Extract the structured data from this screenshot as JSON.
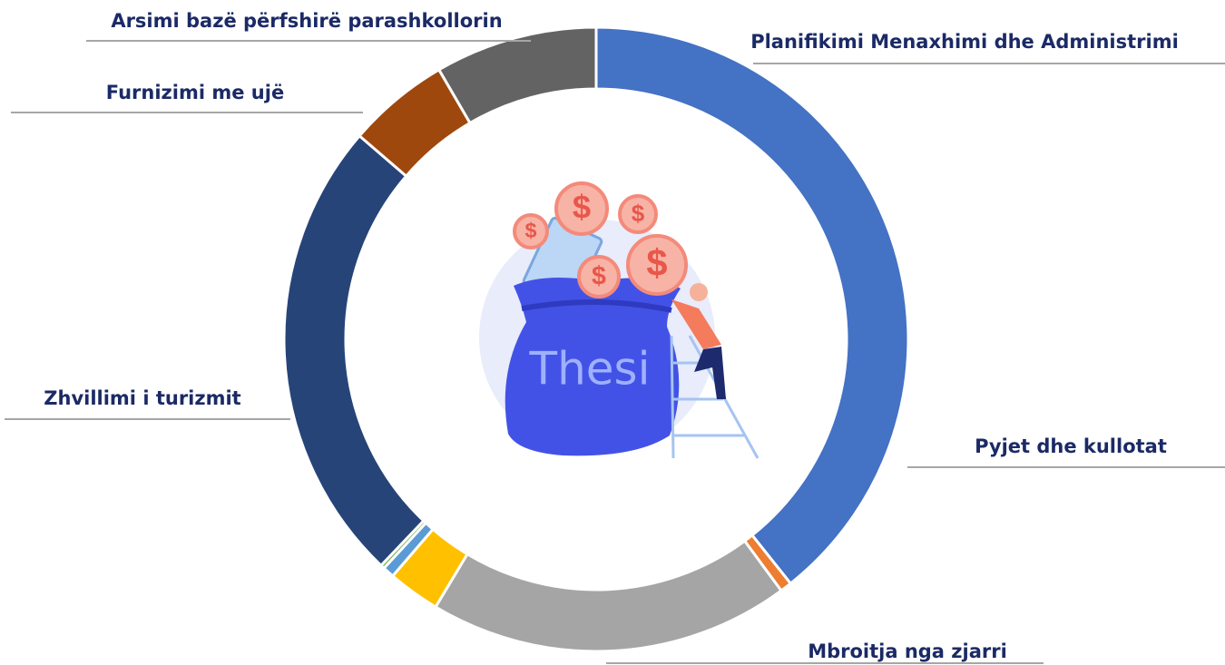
{
  "chart_data": {
    "type": "donut",
    "categories": [
      "Planifikimi Menaxhimi dhe Administrimi",
      null,
      "Mbroitja nga zjarri",
      null,
      null,
      null,
      "Zhvillimi i turizmit",
      "Furnizimi me ujë",
      "Arsimi bazë përfshirë parashkollorin"
    ],
    "values": [
      39.3,
      0.6,
      18.7,
      2.7,
      0.6,
      0.2,
      24.2,
      5.3,
      8.4
    ],
    "colors": [
      "#4472c4",
      "#ed7d31",
      "#a5a5a5",
      "#ffc000",
      "#5b9bd5",
      "#70ad47",
      "#264478",
      "#9e480e",
      "#636363"
    ],
    "extra_labels": [
      {
        "text": "Pyjet dhe kullotat",
        "segment": 0
      }
    ]
  },
  "illustration": {
    "text": "Thesi",
    "coin_symbol": "$"
  }
}
